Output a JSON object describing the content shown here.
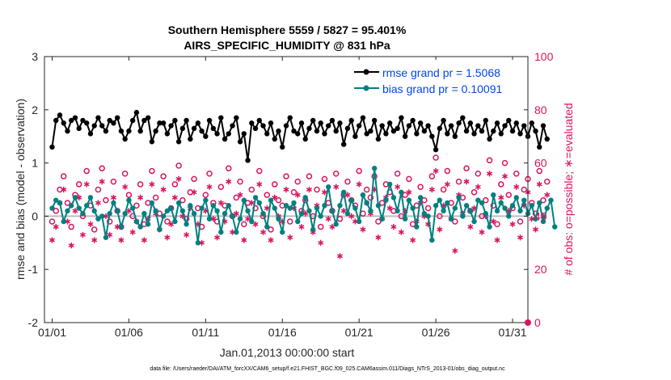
{
  "chart_data": {
    "type": "line",
    "title": "Southern Hemisphere 5559 / 5827 = 95.401%",
    "subtitle": "AIRS_SPECIFIC_HUMIDITY @ 831 hPa",
    "xlabel": "Jan.01,2013 00:00:00 start",
    "ylabel": "rmse and bias (model - observation)",
    "y2label": "# of obs: o=possible; ∗=evaluated",
    "footnote": "data file: /Users/raeder/DAI/ATM_forcXX/CAM6_setup/f.e21.FHIST_BGC.f09_025.CAM6assim.011/Diags_NTrS_2013-01/obs_diag_output.nc",
    "xlim": [
      0.5,
      32
    ],
    "ylim": [
      -2,
      3
    ],
    "y2lim": [
      0,
      100
    ],
    "xticks": [
      1,
      6,
      11,
      16,
      21,
      26,
      31
    ],
    "xtick_labels": [
      "01/01",
      "01/06",
      "01/11",
      "01/16",
      "01/21",
      "01/26",
      "01/31"
    ],
    "yticks": [
      -2,
      -1,
      0,
      1,
      2,
      3
    ],
    "ytick_labels": [
      "-2",
      "-1",
      "0",
      "1",
      "2",
      "3"
    ],
    "y2ticks": [
      0,
      20,
      40,
      60,
      80,
      100
    ],
    "y2tick_labels": [
      "0",
      "20",
      "40",
      "60",
      "80",
      "100"
    ],
    "legend_position": "top-right",
    "colors": {
      "rmse": "#000000",
      "bias": "#008080",
      "obs": "#D9145F",
      "legend_text": "#0047E6",
      "zero_line": "#BDBDBD"
    },
    "series": [
      {
        "name": "rmse grand pr = 1.5068",
        "axis": "left",
        "start": 1.0,
        "step": 0.25,
        "values": [
          1.3,
          1.8,
          1.9,
          1.75,
          1.6,
          1.8,
          1.85,
          1.65,
          1.8,
          1.75,
          1.55,
          1.7,
          1.85,
          1.7,
          1.6,
          1.8,
          1.75,
          1.85,
          1.6,
          1.45,
          1.6,
          1.8,
          1.95,
          1.6,
          1.8,
          1.85,
          1.4,
          1.6,
          1.75,
          1.75,
          1.55,
          1.7,
          1.8,
          1.4,
          1.65,
          1.8,
          1.45,
          1.65,
          1.75,
          1.6,
          1.5,
          1.8,
          1.65,
          1.55,
          1.85,
          1.45,
          1.55,
          1.7,
          1.85,
          1.4,
          1.55,
          1.05,
          1.75,
          1.65,
          1.8,
          1.7,
          1.55,
          1.75,
          1.45,
          1.6,
          1.3,
          1.7,
          1.85,
          1.6,
          1.55,
          1.75,
          1.45,
          1.65,
          1.8,
          1.6,
          1.75,
          1.55,
          1.7,
          1.8,
          1.6,
          1.75,
          1.35,
          1.65,
          1.8,
          1.5,
          1.7,
          1.85,
          1.55,
          1.6,
          1.8,
          1.45,
          1.7,
          1.55,
          1.75,
          1.6,
          1.65,
          1.85,
          1.5,
          1.7,
          1.8,
          1.55,
          1.75,
          1.6,
          1.7,
          1.5,
          1.25,
          1.65,
          1.8,
          1.55,
          1.7,
          1.5,
          1.75,
          1.85,
          1.6,
          1.75,
          1.55,
          1.7,
          1.6,
          1.8,
          1.45,
          1.6,
          1.75,
          1.55,
          1.7,
          1.8,
          1.6,
          1.75,
          1.55,
          1.7,
          1.5,
          1.75,
          1.6,
          1.3,
          1.7,
          1.45
        ]
      },
      {
        "name": "bias grand pr = 0.10091",
        "axis": "left",
        "start": 1.0,
        "step": 0.25,
        "values": [
          0.15,
          0.3,
          0.25,
          -0.1,
          0.1,
          0.2,
          0.35,
          0.15,
          0.05,
          0.2,
          0.35,
          0.1,
          -0.05,
          0.0,
          -0.4,
          0.05,
          0.25,
          0.1,
          -0.2,
          0.05,
          0.3,
          0.15,
          -0.1,
          -0.2,
          0.05,
          -0.15,
          0.25,
          0.1,
          -0.25,
          0.0,
          0.1,
          0.15,
          -0.1,
          0.25,
          0.1,
          -0.15,
          0.2,
          0.05,
          -0.5,
          0.15,
          0.3,
          -0.05,
          0.2,
          0.1,
          -0.3,
          0.05,
          0.2,
          0.0,
          -0.3,
          -0.05,
          0.3,
          0.1,
          -0.1,
          0.35,
          0.25,
          0.05,
          -0.2,
          0.3,
          0.15,
          -0.05,
          -0.3,
          0.2,
          0.15,
          0.25,
          -0.1,
          0.05,
          0.35,
          0.1,
          -0.25,
          0.15,
          0.0,
          0.2,
          0.55,
          0.1,
          -0.15,
          0.2,
          0.45,
          0.05,
          0.3,
          0.15,
          -0.1,
          0.4,
          0.25,
          0.1,
          0.9,
          0.2,
          -0.05,
          0.3,
          0.6,
          0.35,
          0.1,
          0.45,
          -0.05,
          0.3,
          0.15,
          -0.2,
          0.35,
          0.05,
          0.0,
          -0.45,
          0.2,
          0.3,
          0.1,
          0.25,
          -0.05,
          0.15,
          0.35,
          0.0,
          0.2,
          0.1,
          -0.1,
          0.3,
          0.25,
          0.05,
          -0.2,
          0.4,
          0.1,
          0.25,
          0.15,
          0.0,
          0.2,
          0.35,
          0.1,
          0.3,
          0.05,
          0.2,
          -0.05,
          0.25,
          -0.1,
          0.15,
          0.3,
          -0.2
        ]
      },
      {
        "name": "# of obs possible",
        "axis": "right",
        "marker": "o",
        "start": 1.0,
        "step": 0.25,
        "values": [
          38,
          42,
          50,
          55,
          45,
          36,
          48,
          52,
          40,
          57,
          44,
          35,
          50,
          58,
          46,
          38,
          53,
          42,
          36,
          56,
          48,
          40,
          44,
          52,
          37,
          45,
          57,
          47,
          41,
          55,
          38,
          43,
          52,
          59,
          46,
          39,
          49,
          54,
          43,
          36,
          48,
          56,
          45,
          38,
          51,
          44,
          58,
          40,
          47,
          53,
          37,
          45,
          50,
          43,
          57,
          40,
          48,
          35,
          52,
          46,
          44,
          55,
          38,
          49,
          53,
          42,
          46,
          55,
          40,
          50,
          36,
          54,
          45,
          42,
          56,
          39,
          48,
          53,
          46,
          44,
          57,
          41,
          50,
          47,
          55,
          38,
          45,
          52,
          49,
          42,
          56,
          40,
          48,
          54,
          37,
          44,
          51,
          46,
          43,
          55,
          62,
          40,
          50,
          57,
          45,
          38,
          53,
          47,
          58,
          42,
          49,
          56,
          40,
          46,
          61,
          44,
          37,
          52,
          60,
          48,
          43,
          56,
          38,
          50,
          54,
          45,
          41,
          57,
          46,
          53
        ]
      },
      {
        "name": "# of obs evaluated",
        "axis": "right",
        "marker": "*",
        "start": 1.0,
        "step": 0.25,
        "values": [
          31,
          36,
          45,
          50,
          38,
          29,
          42,
          47,
          33,
          52,
          37,
          31,
          45,
          53,
          40,
          33,
          47,
          36,
          31,
          51,
          42,
          34,
          38,
          47,
          31,
          39,
          52,
          41,
          35,
          50,
          32,
          37,
          47,
          54,
          40,
          33,
          43,
          49,
          37,
          30,
          42,
          51,
          39,
          32,
          45,
          38,
          53,
          34,
          41,
          48,
          31,
          39,
          45,
          37,
          52,
          34,
          43,
          31,
          47,
          40,
          38,
          50,
          32,
          43,
          48,
          36,
          41,
          50,
          34,
          44,
          30,
          49,
          39,
          36,
          51,
          25,
          42,
          48,
          40,
          38,
          52,
          35,
          45,
          41,
          50,
          32,
          39,
          47,
          43,
          36,
          51,
          34,
          42,
          49,
          31,
          38,
          45,
          40,
          37,
          50,
          57,
          35,
          44,
          52,
          39,
          27,
          48,
          41,
          53,
          36,
          43,
          51,
          34,
          40,
          56,
          38,
          31,
          47,
          55,
          42,
          37,
          51,
          32,
          44,
          49,
          39,
          35,
          52,
          40,
          48
        ]
      }
    ]
  }
}
